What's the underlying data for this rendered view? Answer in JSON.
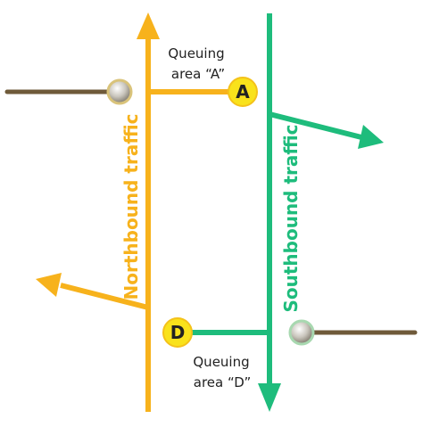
{
  "colors": {
    "northbound": "#F7B21C",
    "southbound": "#1EBC7C",
    "side_road": "#6F5A3A",
    "marker_fill": "#F9E21B",
    "marker_stroke": "#F4C21A",
    "text": "#222222"
  },
  "labels": {
    "northbound": "Northbound traffic",
    "southbound": "Southbound traffic",
    "queue_a_line1": "Queuing",
    "queue_a_line2": "area “A”",
    "queue_d_line1": "Queuing",
    "queue_d_line2": "area “D”"
  },
  "markers": {
    "a": "A",
    "d": "D"
  }
}
